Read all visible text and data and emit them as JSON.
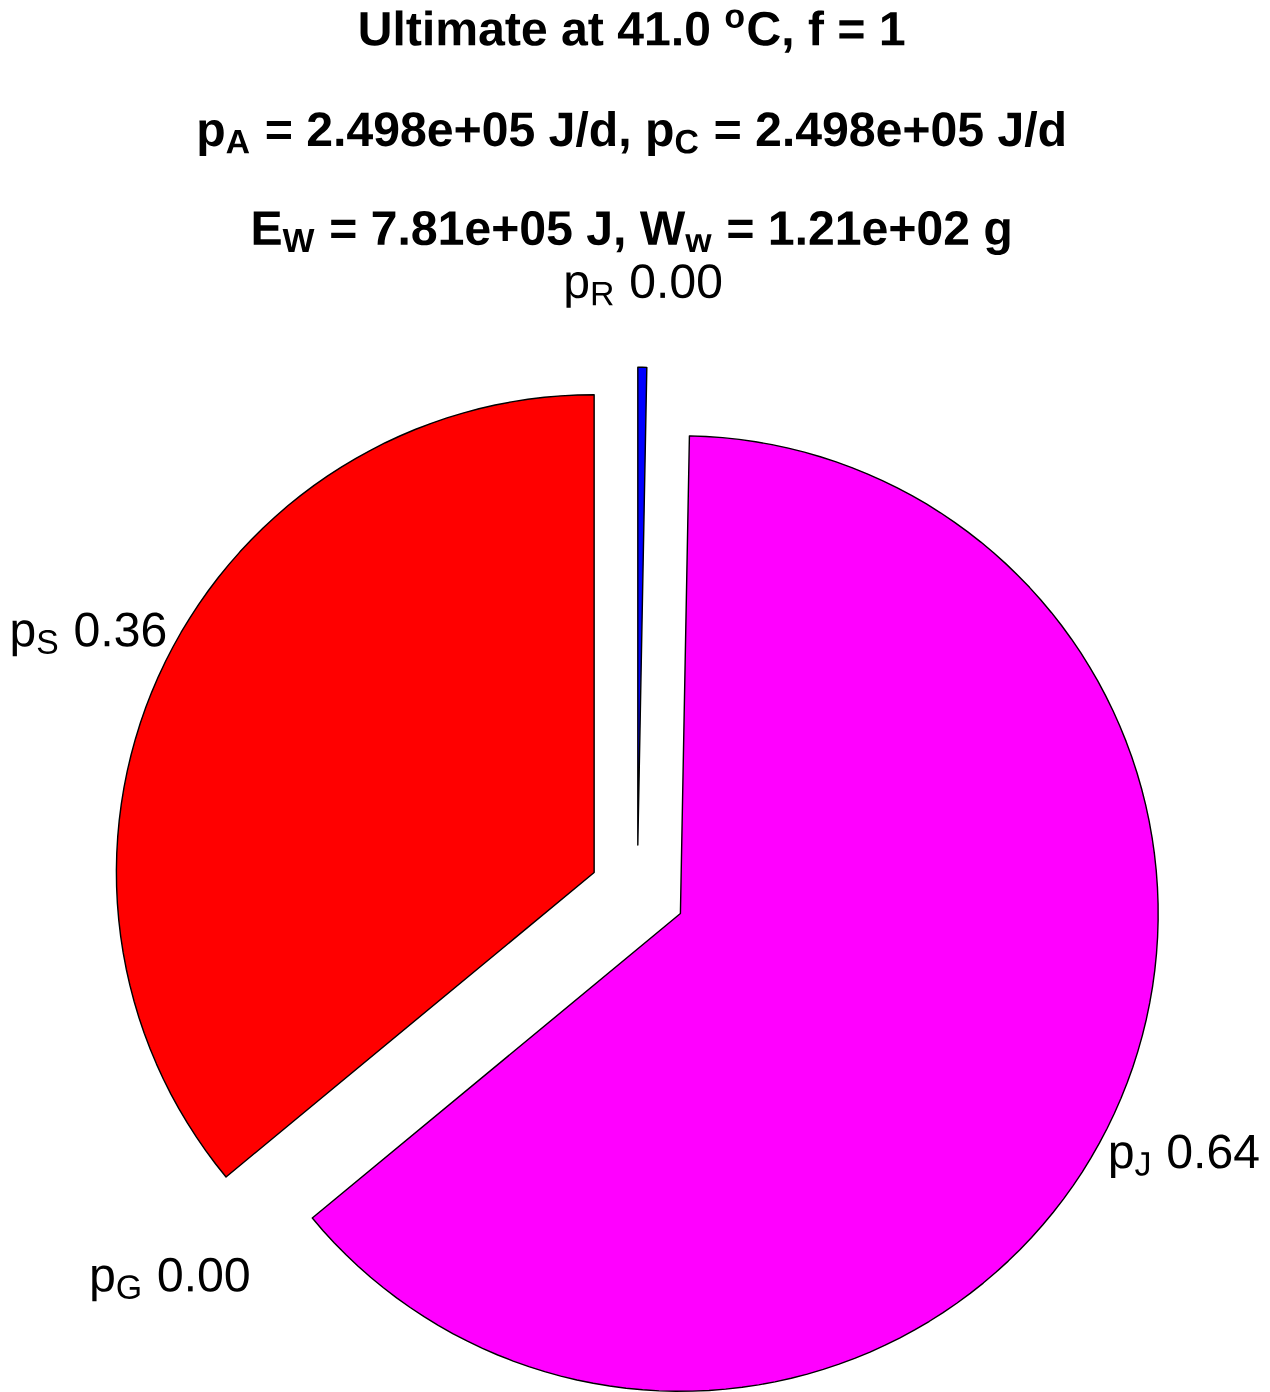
{
  "chart_data": {
    "type": "pie",
    "title": "Ultimate at 41.0 $^{o}$C, f = 1",
    "subtitle": "p$_{A}$ = 2.498e+05 J/d, p$_{C}$ = 2.498e+05 J/d",
    "annotations": [
      "E$_{W}$ = 7.81e+05 J, W$_{w}$ = 1.21e+02 g"
    ],
    "categories": [
      "p$_{R}$",
      "p$_{J}$",
      "p$_{G}$",
      "p$_{S}$"
    ],
    "values": [
      0.003,
      0.637,
      0,
      0.36
    ],
    "value_labels": [
      "0.00",
      "0.64",
      "0.00",
      "0.36"
    ],
    "colors": [
      "#0000ff",
      "#ff00ff",
      "#00ff00",
      "#ff0000"
    ]
  }
}
